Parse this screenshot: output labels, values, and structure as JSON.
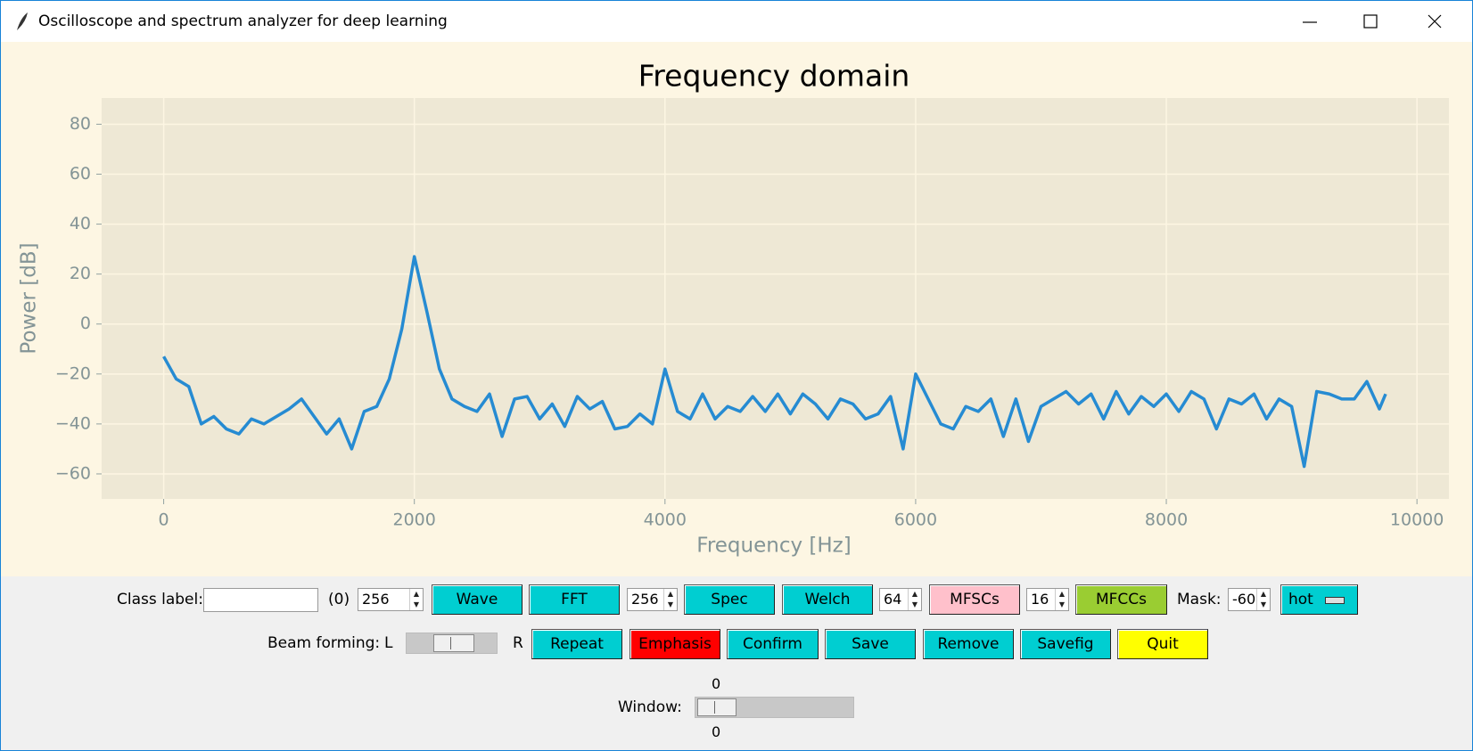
{
  "window": {
    "title": "Oscilloscope and spectrum analyzer for deep learning"
  },
  "chart_data": {
    "type": "line",
    "title": "Frequency domain",
    "x_label": "Frequency [Hz]",
    "y_label": "Power [dB]",
    "x": [
      0,
      100,
      200,
      300,
      400,
      500,
      600,
      700,
      800,
      900,
      1000,
      1100,
      1200,
      1300,
      1400,
      1500,
      1600,
      1700,
      1800,
      1900,
      2000,
      2100,
      2200,
      2300,
      2400,
      2500,
      2600,
      2700,
      2800,
      2900,
      3000,
      3100,
      3200,
      3300,
      3400,
      3500,
      3600,
      3700,
      3800,
      3900,
      4000,
      4100,
      4200,
      4300,
      4400,
      4500,
      4600,
      4700,
      4800,
      4900,
      5000,
      5100,
      5200,
      5300,
      5400,
      5500,
      5600,
      5700,
      5800,
      5900,
      6000,
      6100,
      6200,
      6300,
      6400,
      6500,
      6600,
      6700,
      6800,
      6900,
      7000,
      7100,
      7200,
      7300,
      7400,
      7500,
      7600,
      7700,
      7800,
      7900,
      8000,
      8100,
      8200,
      8300,
      8400,
      8500,
      8600,
      8700,
      8800,
      8900,
      9000,
      9100,
      9200,
      9300,
      9400,
      9500,
      9600,
      9700,
      9750
    ],
    "series": [
      {
        "name": "Power",
        "color": "#268bd2",
        "values": [
          -13,
          -22,
          -25,
          -40,
          -37,
          -42,
          -44,
          -38,
          -40,
          -37,
          -34,
          -30,
          -37,
          -44,
          -38,
          -50,
          -35,
          -33,
          -22,
          -2,
          27,
          5,
          -18,
          -30,
          -33,
          -35,
          -28,
          -45,
          -30,
          -29,
          -38,
          -32,
          -41,
          -29,
          -34,
          -31,
          -42,
          -41,
          -36,
          -40,
          -18,
          -35,
          -38,
          -28,
          -38,
          -33,
          -35,
          -29,
          -35,
          -28,
          -36,
          -28,
          -32,
          -38,
          -30,
          -32,
          -38,
          -36,
          -29,
          -50,
          -20,
          -30,
          -40,
          -42,
          -33,
          -35,
          -30,
          -45,
          -30,
          -47,
          -33,
          -30,
          -27,
          -32,
          -28,
          -38,
          -27,
          -36,
          -29,
          -33,
          -28,
          -35,
          -27,
          -30,
          -42,
          -30,
          -32,
          -28,
          -38,
          -30,
          -33,
          -57,
          -27,
          -28,
          -30,
          -30,
          -23,
          -34,
          -28
        ]
      }
    ],
    "xlim": [
      -495,
      10255
    ],
    "ylim": [
      -70,
      90.5
    ],
    "xticks": [
      0,
      2000,
      4000,
      6000,
      8000,
      10000
    ],
    "yticks": [
      {
        "value": -60,
        "label": "−60"
      },
      {
        "value": -40,
        "label": "−40"
      },
      {
        "value": -20,
        "label": "−20"
      },
      0,
      20,
      40,
      60,
      80
    ],
    "grid": true
  },
  "controls": {
    "class_label": "Class label:",
    "class_count": "(0)",
    "spin_wave": "256",
    "wave": "Wave",
    "fft": "FFT",
    "spin_fft": "256",
    "spec": "Spec",
    "welch": "Welch",
    "spin_welch": "64",
    "mfscs": "MFSCs",
    "spin_mfscs": "16",
    "mfccs": "MFCCs",
    "mask": "Mask:",
    "spin_mask": "-60",
    "colormap": "hot",
    "beam_forming": "Beam forming:",
    "left": "L",
    "right": "R",
    "repeat": "Repeat",
    "emphasis": "Emphasis",
    "confirm": "Confirm",
    "save": "Save",
    "remove": "Remove",
    "savefig": "Savefig",
    "quit": "Quit",
    "window_label": "Window:",
    "window_top": "0",
    "window_bottom": "0"
  }
}
